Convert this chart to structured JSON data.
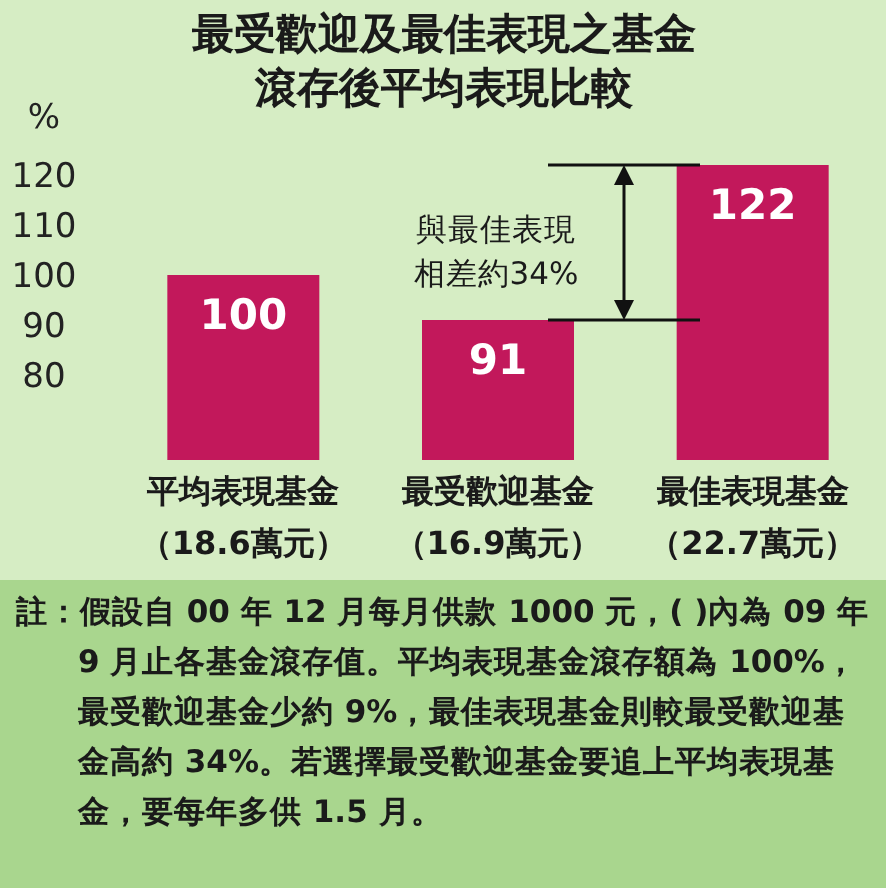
{
  "chart_data": {
    "type": "bar",
    "title": "最受歡迎及最佳表現之基金滾存後平均表現比較",
    "ylabel": "%",
    "categories": [
      "平均表現基金（18.6萬元）",
      "最受歡迎基金（16.9萬元）",
      "最佳表現基金（22.7萬元）"
    ],
    "values": [
      100,
      91,
      122
    ],
    "color": "#c2185b",
    "data_labels": true,
    "ylim": [
      63,
      123
    ],
    "yticks": [
      80,
      90,
      100,
      110,
      120
    ],
    "grid": false,
    "annotations": [
      "與最佳表現相差約34%",
      "註：假設自 00 年 12 月每月供款 1000 元，( )內為 09 年 9 月止各基金滾存值。平均表現基金滾存額為 100%，最受歡迎基金少約 9%，最佳表現基金則較最受歡迎基金高約 34%。若選擇最受歡迎基金要追上平均表現基金，要每年多供 1.5 月。"
    ]
  }
}
